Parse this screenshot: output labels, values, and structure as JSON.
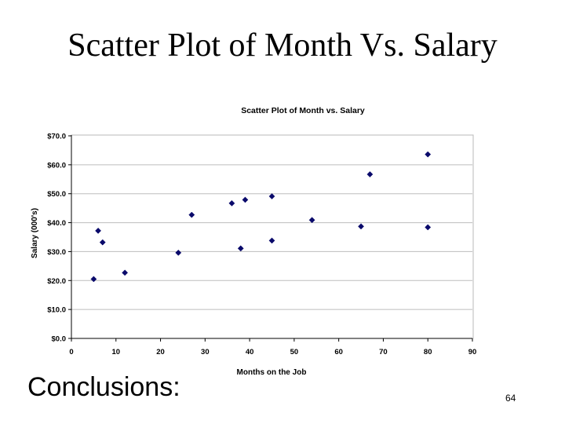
{
  "slide": {
    "title": "Scatter Plot of Month Vs. Salary",
    "conclusions_label": "Conclusions:",
    "page_number": "64"
  },
  "chart_data": {
    "type": "scatter",
    "title": "Scatter Plot of Month vs. Salary",
    "xlabel": "Months on the Job",
    "ylabel": "Salary (000's)",
    "xlim": [
      0,
      90
    ],
    "ylim": [
      0,
      70
    ],
    "x_ticks": [
      "0",
      "10",
      "20",
      "30",
      "40",
      "50",
      "60",
      "70",
      "80",
      "90"
    ],
    "y_ticks": [
      "$0.0",
      "$10.0",
      "$20.0",
      "$30.0",
      "$40.0",
      "$50.0",
      "$60.0",
      "$70.0"
    ],
    "grid": "y",
    "marker": "diamond",
    "marker_color": "#0a0a6b",
    "series": [
      {
        "points": [
          {
            "x": 5,
            "y": 20.5
          },
          {
            "x": 6,
            "y": 37.2
          },
          {
            "x": 7,
            "y": 33.2
          },
          {
            "x": 12,
            "y": 22.7
          },
          {
            "x": 24,
            "y": 29.6
          },
          {
            "x": 27,
            "y": 42.7
          },
          {
            "x": 36,
            "y": 46.7
          },
          {
            "x": 38,
            "y": 31.1
          },
          {
            "x": 39,
            "y": 47.9
          },
          {
            "x": 45,
            "y": 49.1
          },
          {
            "x": 45,
            "y": 33.8
          },
          {
            "x": 54,
            "y": 40.9
          },
          {
            "x": 65,
            "y": 38.7
          },
          {
            "x": 67,
            "y": 56.7
          },
          {
            "x": 80,
            "y": 63.6
          },
          {
            "x": 80,
            "y": 38.4
          }
        ]
      }
    ]
  }
}
